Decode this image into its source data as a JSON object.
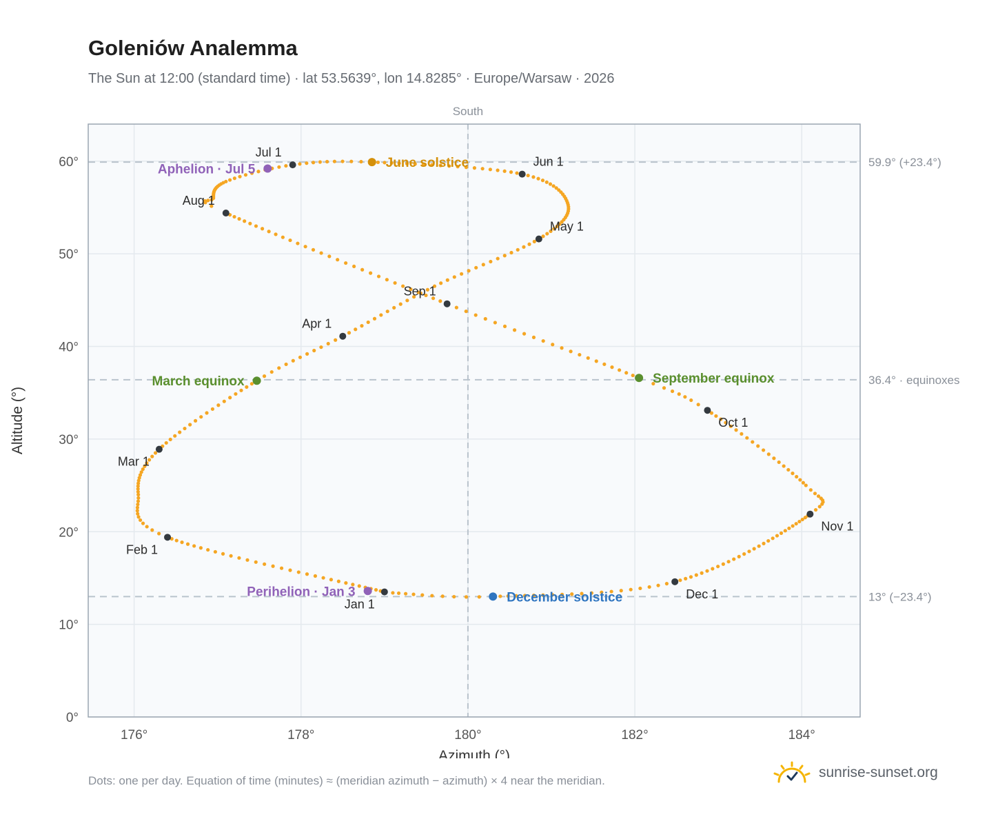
{
  "header": {
    "title": "Goleniów Analemma",
    "subtitle": "The Sun at 12:00 (standard time) · lat 53.5639°, lon 14.8285° · Europe/Warsaw · 2026"
  },
  "footer": {
    "note": "Dots: one per day. Equation of time (minutes) ≈ (meridian azimuth − azimuth) × 4 near the meridian.",
    "brand": "sunrise-sunset.org",
    "brand_icon": "sun-icon"
  },
  "colors": {
    "path": "#f5a623",
    "month_marker": "#343a40",
    "solstice_june": "#d4900a",
    "equinox": "#5a8f2e",
    "solstice_december": "#2f75c0",
    "apsis": "#9062b8",
    "reference_line": "#b9c3cc",
    "plot_background": "#f8fafc",
    "grid": "#e4e9ee"
  },
  "chart_data": {
    "type": "scatter",
    "xlabel": "Azimuth (°)",
    "ylabel": "Altitude (°)",
    "xlim": [
      175.45,
      184.7
    ],
    "ylim": [
      0,
      64
    ],
    "x_ticks": [
      176,
      178,
      180,
      182,
      184
    ],
    "x_tick_labels": [
      "176°",
      "178°",
      "180°",
      "182°",
      "184°"
    ],
    "y_ticks": [
      0,
      10,
      20,
      30,
      40,
      50,
      60
    ],
    "y_tick_labels": [
      "0°",
      "10°",
      "20°",
      "30°",
      "40°",
      "50°",
      "60°"
    ],
    "grid": true,
    "meridian": {
      "x": 180,
      "label": "South"
    },
    "reference_lines": [
      {
        "y": 59.9,
        "label": "59.9° (+23.4°)"
      },
      {
        "y": 36.4,
        "label": "36.4° · equinoxes"
      },
      {
        "y": 13.0,
        "label": "13° (−23.4°)"
      }
    ],
    "path_anchors": [
      {
        "day": 1,
        "az": 179.0,
        "alt": 13.5
      },
      {
        "day": 32,
        "az": 176.4,
        "alt": 19.4
      },
      {
        "day": 45,
        "az": 176.05,
        "alt": 24.0
      },
      {
        "day": 60,
        "az": 176.3,
        "alt": 28.9
      },
      {
        "day": 79,
        "az": 177.47,
        "alt": 36.3
      },
      {
        "day": 91,
        "az": 178.5,
        "alt": 41.1
      },
      {
        "day": 105,
        "az": 179.6,
        "alt": 46.5
      },
      {
        "day": 121,
        "az": 180.85,
        "alt": 51.6
      },
      {
        "day": 136,
        "az": 181.2,
        "alt": 55.3
      },
      {
        "day": 152,
        "az": 180.65,
        "alt": 58.6
      },
      {
        "day": 172,
        "az": 178.85,
        "alt": 59.9
      },
      {
        "day": 182,
        "az": 177.9,
        "alt": 59.6
      },
      {
        "day": 193,
        "az": 177.1,
        "alt": 57.8
      },
      {
        "day": 207,
        "az": 176.95,
        "alt": 56.0
      },
      {
        "day": 213,
        "az": 177.1,
        "alt": 54.4
      },
      {
        "day": 244,
        "az": 179.75,
        "alt": 44.6
      },
      {
        "day": 266,
        "az": 182.05,
        "alt": 36.6
      },
      {
        "day": 274,
        "az": 182.87,
        "alt": 33.1
      },
      {
        "day": 295,
        "az": 184.05,
        "alt": 25.0
      },
      {
        "day": 305,
        "az": 184.1,
        "alt": 21.9
      },
      {
        "day": 335,
        "az": 182.48,
        "alt": 14.6
      },
      {
        "day": 355,
        "az": 180.3,
        "alt": 13.0
      },
      {
        "day": 365,
        "az": 179.1,
        "alt": 13.4
      }
    ],
    "month_markers": [
      {
        "label": "Jan 1",
        "az": 179.0,
        "alt": 13.5,
        "label_pos": "below-left"
      },
      {
        "label": "Feb 1",
        "az": 176.4,
        "alt": 19.4,
        "label_pos": "below-left"
      },
      {
        "label": "Mar 1",
        "az": 176.3,
        "alt": 28.9,
        "label_pos": "below-left"
      },
      {
        "label": "Apr 1",
        "az": 178.5,
        "alt": 41.1,
        "label_pos": "above-left"
      },
      {
        "label": "May 1",
        "az": 180.85,
        "alt": 51.6,
        "label_pos": "above-right"
      },
      {
        "label": "Jun 1",
        "az": 180.65,
        "alt": 58.6,
        "label_pos": "above-right"
      },
      {
        "label": "Jul 1",
        "az": 177.9,
        "alt": 59.6,
        "label_pos": "above-left"
      },
      {
        "label": "Aug 1",
        "az": 177.1,
        "alt": 54.4,
        "label_pos": "above-left"
      },
      {
        "label": "Sep 1",
        "az": 179.75,
        "alt": 44.6,
        "label_pos": "above-left"
      },
      {
        "label": "Oct 1",
        "az": 182.87,
        "alt": 33.1,
        "label_pos": "below-right"
      },
      {
        "label": "Nov 1",
        "az": 184.1,
        "alt": 21.9,
        "label_pos": "below-right"
      },
      {
        "label": "Dec 1",
        "az": 182.48,
        "alt": 14.6,
        "label_pos": "below-right"
      }
    ],
    "events": [
      {
        "label": "June solstice",
        "az": 178.85,
        "alt": 59.9,
        "color": "#d4900a",
        "label_pos": "right"
      },
      {
        "label": "March equinox",
        "az": 177.47,
        "alt": 36.3,
        "color": "#5a8f2e",
        "label_pos": "left"
      },
      {
        "label": "September equinox",
        "az": 182.05,
        "alt": 36.6,
        "color": "#5a8f2e",
        "label_pos": "right"
      },
      {
        "label": "December solstice",
        "az": 180.3,
        "alt": 13.0,
        "color": "#2f75c0",
        "label_pos": "right"
      },
      {
        "label": "Aphelion · Jul 5",
        "az": 177.6,
        "alt": 59.2,
        "color": "#9062b8",
        "label_pos": "left"
      },
      {
        "label": "Perihelion · Jan 3",
        "az": 178.8,
        "alt": 13.6,
        "color": "#9062b8",
        "label_pos": "left"
      }
    ]
  }
}
